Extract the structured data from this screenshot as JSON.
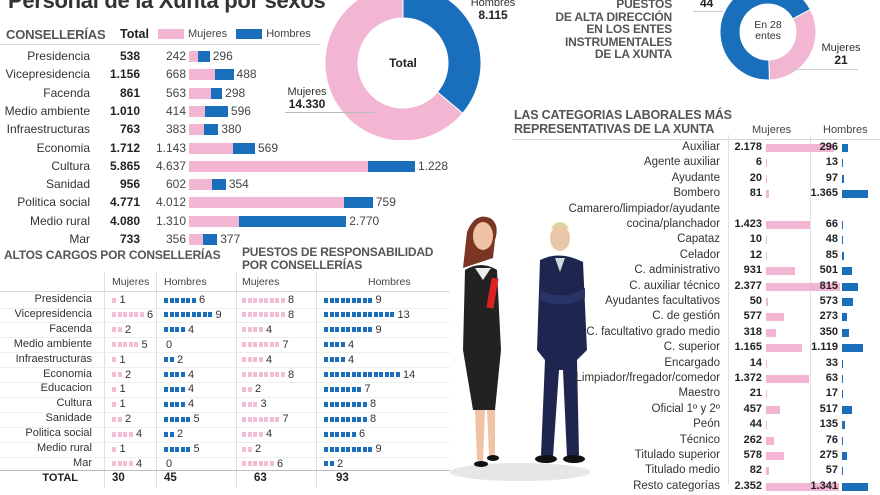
{
  "title": "Personal de la Xunta por sexos",
  "colors": {
    "mujeres": "#f2b6d2",
    "hombres": "#1a6fbd"
  },
  "legend": {
    "mujeres": "Mujeres",
    "hombres": "Hombres"
  },
  "chart_data": [
    {
      "type": "bar",
      "title": "CONSELLERÍAS",
      "total_header": "Total",
      "stacked": true,
      "categories": [
        "Presidencia",
        "Vicepresidencia",
        "Facenda",
        "Medio ambiente",
        "Infraestructuras",
        "Economia",
        "Cultura",
        "Sanidad",
        "Politica social",
        "Medio rural",
        "Mar"
      ],
      "totals": [
        "538",
        "1.156",
        "861",
        "1.010",
        "763",
        "1.712",
        "5.865",
        "956",
        "4.771",
        "4.080",
        "733"
      ],
      "series": [
        {
          "name": "Mujeres",
          "values": [
            242,
            668,
            563,
            414,
            383,
            1143,
            4637,
            602,
            4012,
            1310,
            356
          ],
          "labels": [
            "242",
            "668",
            "563",
            "414",
            "383",
            "1.143",
            "4.637",
            "602",
            "4.012",
            "1.310",
            "356"
          ]
        },
        {
          "name": "Hombres",
          "values": [
            296,
            488,
            298,
            596,
            380,
            569,
            1228,
            354,
            759,
            2770,
            377
          ],
          "labels": [
            "296",
            "488",
            "298",
            "596",
            "380",
            "569",
            "1.228",
            "354",
            "759",
            "2.770",
            "377"
          ]
        }
      ]
    },
    {
      "type": "pie",
      "title": "Total",
      "slices": [
        {
          "name": "Mujeres",
          "value": 14330,
          "label": "14.330"
        },
        {
          "name": "Hombres",
          "value": 8115,
          "label": "8.115"
        }
      ]
    },
    {
      "type": "pie",
      "title": "PUESTOS DE ALTA DIRECCIÓN EN LOS ENTES INSTRUMENTALES DE LA XUNTA",
      "center_label_1": "En 28",
      "center_label_2": "entes",
      "slices": [
        {
          "name": "Hombres",
          "value": 44,
          "label": "44"
        },
        {
          "name": "Mujeres",
          "value": 21,
          "label": "21"
        }
      ]
    },
    {
      "type": "table",
      "title": "ALTOS CARGOS POR CONSELLERÍAS",
      "columns": [
        "Mujeres",
        "Hombres"
      ],
      "categories": [
        "Presidencia",
        "Vicepresidencia",
        "Facenda",
        "Medio ambiente",
        "Infraestructuras",
        "Economia",
        "Educacion",
        "Cultura",
        "Sanidade",
        "Politica social",
        "Medio rural",
        "Mar"
      ],
      "series": [
        {
          "name": "Mujeres",
          "values": [
            1,
            6,
            2,
            5,
            1,
            2,
            1,
            1,
            2,
            4,
            1,
            4
          ]
        },
        {
          "name": "Hombres",
          "values": [
            6,
            9,
            4,
            0,
            2,
            4,
            4,
            4,
            5,
            2,
            5,
            0
          ]
        }
      ],
      "total_label": "TOTAL",
      "totals": {
        "Mujeres": 30,
        "Hombres": 45
      }
    },
    {
      "type": "table",
      "title": "PUESTOS DE RESPONSABILIDAD POR CONSELLERÍAS",
      "columns": [
        "Mujeres",
        "Hombres"
      ],
      "series": [
        {
          "name": "Mujeres",
          "values": [
            8,
            8,
            4,
            7,
            4,
            8,
            2,
            3,
            7,
            4,
            2,
            6
          ]
        },
        {
          "name": "Hombres",
          "values": [
            9,
            13,
            9,
            4,
            4,
            14,
            7,
            8,
            8,
            6,
            9,
            2
          ]
        }
      ],
      "totals": {
        "Mujeres": 63,
        "Hombres": 93
      }
    },
    {
      "type": "bar",
      "title": "LAS CATEGORIAS LABORALES MÁS REPRESENTATIVAS DE LA XUNTA",
      "columns": [
        "Mujeres",
        "Hombres"
      ],
      "categories": [
        "Auxiliar",
        "Agente auxiliar",
        "Ayudante",
        "Bombero",
        "Camarero/limpiador/ayudante|cocina/planchador",
        "Capataz",
        "Celador",
        "C. administrativo",
        "C. auxiliar técnico",
        "Ayudantes facultativos",
        "C. de gestión",
        "C. facultativo grado medio",
        "C. superior",
        "Encargado",
        "Limpiador/fregador/comedor",
        "Maestro",
        "Oficial 1º y 2º",
        "Peón",
        "Técnico",
        "Titulado superior",
        "Titulado medio",
        "Resto categorías"
      ],
      "series": [
        {
          "name": "Mujeres",
          "values": [
            2178,
            6,
            20,
            81,
            1423,
            10,
            12,
            931,
            2377,
            50,
            577,
            318,
            1165,
            14,
            1372,
            21,
            457,
            44,
            262,
            578,
            82,
            2352
          ],
          "labels": [
            "2.178",
            "6",
            "20",
            "81",
            "1.423",
            "10",
            "12",
            "931",
            "2.377",
            "50",
            "577",
            "318",
            "1.165",
            "14",
            "1.372",
            "21",
            "457",
            "44",
            "262",
            "578",
            "82",
            "2.352"
          ]
        },
        {
          "name": "Hombres",
          "values": [
            296,
            13,
            97,
            1365,
            66,
            48,
            85,
            501,
            815,
            573,
            273,
            350,
            1119,
            33,
            63,
            17,
            517,
            135,
            76,
            275,
            57,
            1341
          ],
          "labels": [
            "296",
            "13",
            "97",
            "1.365",
            "66",
            "48",
            "85",
            "501",
            "815",
            "573",
            "273",
            "350",
            "1.119",
            "33",
            "63",
            "17",
            "517",
            "135",
            "76",
            "275",
            "57",
            "1.341"
          ]
        }
      ]
    }
  ],
  "labels": {
    "conselleria_header": "CONSELLERÍAS",
    "total_header": "Total",
    "total_pie_center": "Total",
    "pie_mujeres": "Mujeres",
    "pie_mujeres_value": "14.330",
    "pie_hombres": "Hombres",
    "pie_hombres_value": "8.115",
    "alta_title_1": "PUESTOS",
    "alta_title_2": "DE ALTA DIRECCIÓN",
    "alta_title_3": "EN LOS ENTES",
    "alta_title_4": "INSTRUMENTALES",
    "alta_title_5": "DE LA XUNTA",
    "alta_hombres_value": "44",
    "alta_center_1": "En 28",
    "alta_center_2": "entes",
    "alta_mujeres": "Mujeres",
    "alta_mujeres_value": "21",
    "altos_title": "ALTOS CARGOS POR CONSELLERÍAS",
    "resp_title_1": "PUESTOS DE RESPONSABILIDAD",
    "resp_title_2": "POR CONSELLERÍAS",
    "col_mujeres": "Mujeres",
    "col_hombres": "Hombres",
    "total_row": "TOTAL",
    "cat_title_1": "LAS CATEGORIAS LABORALES  MÁS",
    "cat_title_2": "REPRESENTATIVAS DE LA XUNTA"
  }
}
